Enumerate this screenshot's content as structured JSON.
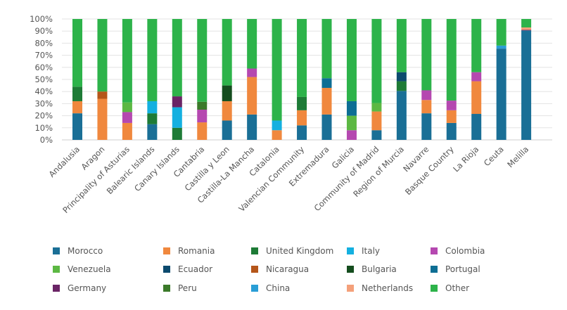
{
  "chart_data": {
    "type": "bar",
    "stacked": true,
    "normalized_percent": true,
    "categories": [
      "Andalusia",
      "Aragon",
      "Principality of Asturias",
      "Balearic Islands",
      "Canary Islands",
      "Cantabria",
      "Castilla y Leon",
      "Castilla-La Mancha",
      "Catalonia",
      "Valencian Community",
      "Extremadura",
      "Galicia",
      "Community of Madrid",
      "Region of Murcia",
      "Navarre",
      "Basque Country",
      "La Rioja",
      "Ceuta",
      "Melilla"
    ],
    "ylim": [
      0,
      100
    ],
    "yticks": [
      "0%",
      "10%",
      "20%",
      "30%",
      "40%",
      "50%",
      "60%",
      "70%",
      "80%",
      "90%",
      "100%"
    ],
    "grid": true,
    "legend_position": "bottom",
    "series": [
      {
        "name": "Morocco",
        "color": "#1a6f96",
        "values": [
          22,
          0,
          0,
          13,
          0,
          0,
          16,
          21,
          0,
          12,
          21,
          0,
          8,
          40.5,
          22,
          14,
          21.5,
          75.5,
          90.5
        ]
      },
      {
        "name": "Romania",
        "color": "#f0883e",
        "values": [
          10,
          34,
          14,
          0,
          0,
          14.5,
          16,
          31,
          8,
          12.5,
          22,
          0,
          15.5,
          0,
          11,
          10.5,
          27,
          0,
          0
        ]
      },
      {
        "name": "United Kingdom",
        "color": "#1e7b36",
        "values": [
          12,
          0,
          0,
          9,
          10,
          0,
          0,
          0,
          0,
          11,
          0,
          0,
          0,
          8,
          0,
          0,
          0,
          0,
          0
        ]
      },
      {
        "name": "Italy",
        "color": "#14b0e0",
        "values": [
          0,
          0,
          0,
          10,
          17,
          0,
          0,
          0,
          8,
          0,
          0,
          0,
          0,
          0,
          0,
          0,
          0,
          0,
          0
        ]
      },
      {
        "name": "Colombia",
        "color": "#b548b0",
        "values": [
          0,
          0,
          9,
          0,
          0,
          10.5,
          0,
          7,
          0,
          0,
          0,
          8,
          0,
          0,
          8,
          8,
          7.5,
          0,
          0
        ]
      },
      {
        "name": "Venezuela",
        "color": "#5cb843",
        "values": [
          0,
          0,
          8,
          0,
          0,
          0,
          0,
          0,
          0,
          0,
          0,
          12,
          7,
          0,
          0,
          0,
          0,
          0,
          0
        ]
      },
      {
        "name": "Ecuador",
        "color": "#0c4a6e",
        "values": [
          0,
          0,
          0,
          0,
          0,
          0,
          0,
          0,
          0,
          0,
          0,
          0,
          0,
          7.5,
          0,
          0,
          0,
          0,
          0
        ]
      },
      {
        "name": "Nicaragua",
        "color": "#b5561a",
        "values": [
          0,
          6,
          0,
          0,
          0,
          0,
          0,
          0,
          0,
          0,
          0,
          0,
          0,
          0,
          0,
          0,
          0,
          0,
          0
        ]
      },
      {
        "name": "Bulgaria",
        "color": "#144d1e",
        "values": [
          0,
          0,
          0,
          0,
          0,
          0,
          13,
          0,
          0,
          0,
          0,
          0,
          0,
          0,
          0,
          0,
          0,
          0,
          0
        ]
      },
      {
        "name": "Portugal",
        "color": "#0d6e94",
        "values": [
          0,
          0,
          0,
          0,
          0,
          0,
          0,
          0,
          0,
          0,
          8,
          12,
          0,
          0,
          0,
          0,
          0,
          0,
          0
        ]
      },
      {
        "name": "Germany",
        "color": "#6a2466",
        "values": [
          0,
          0,
          0,
          0,
          9,
          0,
          0,
          0,
          0,
          0,
          0,
          0,
          0,
          0,
          0,
          0,
          0,
          0,
          0.5
        ]
      },
      {
        "name": "Peru",
        "color": "#3b7a2a",
        "values": [
          0,
          0,
          0,
          0,
          0,
          6.5,
          0,
          0,
          0,
          0,
          0,
          0,
          0,
          0,
          0,
          0,
          0,
          0,
          0
        ]
      },
      {
        "name": "China",
        "color": "#2a9ed6",
        "values": [
          0,
          0,
          0,
          0,
          0,
          0,
          0,
          0,
          0,
          0,
          0,
          0,
          0,
          0,
          0,
          0,
          0,
          2.5,
          0
        ]
      },
      {
        "name": "Netherlands",
        "color": "#f4a07a",
        "values": [
          0,
          0,
          0,
          0,
          0,
          0,
          0,
          0,
          0,
          0,
          0,
          0,
          0,
          0,
          0,
          0,
          0,
          0,
          2
        ]
      },
      {
        "name": "Other",
        "color": "#2db34a",
        "values": [
          56,
          60,
          69,
          68,
          64,
          68.5,
          55,
          41,
          84,
          64.5,
          49,
          68,
          69.5,
          44,
          59,
          67.5,
          44,
          22,
          7
        ]
      }
    ]
  }
}
